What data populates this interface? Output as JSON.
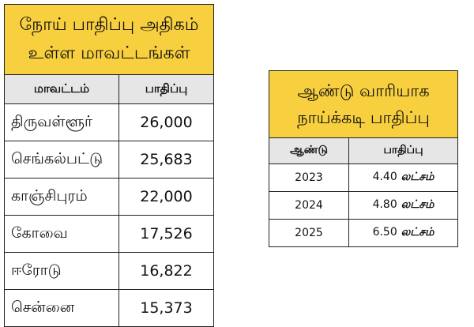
{
  "left_table": {
    "title_line1": "நோய் பாதிப்பு அதிகம்",
    "title_line2": "உள்ள மாவட்டங்கள்",
    "headers": [
      "மாவட்டம்",
      "பாதிப்பு"
    ],
    "rows": [
      {
        "district": "திருவள்ளூர்",
        "cases": "26,000"
      },
      {
        "district": "செங்கல்பட்டு",
        "cases": "25,683"
      },
      {
        "district": "காஞ்சிபுரம்",
        "cases": "22,000"
      },
      {
        "district": "கோவை",
        "cases": "17,526"
      },
      {
        "district": "ஈரோடு",
        "cases": "16,822"
      },
      {
        "district": "சென்னை",
        "cases": "15,373"
      }
    ]
  },
  "right_table": {
    "title_line1": "ஆண்டு வாரியாக",
    "title_line2": "நாய்க்கடி பாதிப்பு",
    "headers": [
      "ஆண்டு",
      "பாதிப்பு"
    ],
    "rows": [
      {
        "year": "2023",
        "value": "4.40",
        "unit": "லட்சம்"
      },
      {
        "year": "2024",
        "value": "4.80",
        "unit": "லட்சம்"
      },
      {
        "year": "2025",
        "value": "6.50",
        "unit": "லட்சம்"
      }
    ]
  },
  "colors": {
    "title_bg": "#f8cf3f",
    "header_bg": "#e6e6e6",
    "border": "#222222"
  }
}
